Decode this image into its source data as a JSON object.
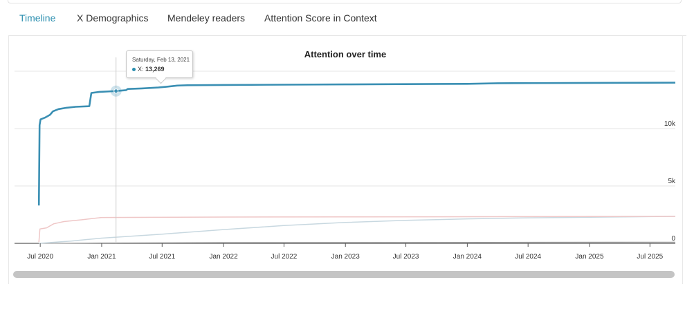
{
  "tabs": [
    {
      "label": "Timeline",
      "active": true
    },
    {
      "label": "X Demographics",
      "active": false
    },
    {
      "label": "Mendeley readers",
      "active": false
    },
    {
      "label": "Attention Score in Context",
      "active": false
    }
  ],
  "colors": {
    "accent": "#2a8eaf",
    "x_series": "#3a8fb3",
    "series_pink": "#efc7c7",
    "series_lightblue": "#c8d8e0",
    "series_gray": "#999999"
  },
  "tooltip": {
    "date": "Saturday, Feb 13, 2021",
    "series": "X",
    "value": "13,269"
  },
  "chart_data": {
    "type": "line",
    "title": "Attention over time",
    "xlabel": "",
    "ylabel": "",
    "x_range": [
      "2020-04-15",
      "2025-09-15"
    ],
    "ylim": [
      0,
      15000
    ],
    "y_ticks": [
      {
        "label": "0",
        "value": 0
      },
      {
        "label": "5k",
        "value": 5000
      },
      {
        "label": "10k",
        "value": 10000
      }
    ],
    "x_ticks": [
      {
        "label": "Jul 2020",
        "date": "2020-07-01"
      },
      {
        "label": "Jan 2021",
        "date": "2021-01-01"
      },
      {
        "label": "Jul 2021",
        "date": "2021-07-01"
      },
      {
        "label": "Jan 2022",
        "date": "2022-01-01"
      },
      {
        "label": "Jul 2022",
        "date": "2022-07-01"
      },
      {
        "label": "Jan 2023",
        "date": "2023-01-01"
      },
      {
        "label": "Jul 2023",
        "date": "2023-07-01"
      },
      {
        "label": "Jan 2024",
        "date": "2024-01-01"
      },
      {
        "label": "Jul 2024",
        "date": "2024-07-01"
      },
      {
        "label": "Jan 2025",
        "date": "2025-01-01"
      },
      {
        "label": "Jul 2025",
        "date": "2025-07-01"
      }
    ],
    "series": [
      {
        "name": "X",
        "color": "#3a8fb3",
        "width": 2.6,
        "points": [
          [
            "2020-06-27",
            3300
          ],
          [
            "2020-06-29",
            10300
          ],
          [
            "2020-07-02",
            10800
          ],
          [
            "2020-07-15",
            10950
          ],
          [
            "2020-07-30",
            11200
          ],
          [
            "2020-08-08",
            11500
          ],
          [
            "2020-08-25",
            11700
          ],
          [
            "2020-09-15",
            11800
          ],
          [
            "2020-10-15",
            11900
          ],
          [
            "2020-11-25",
            11950
          ],
          [
            "2020-12-01",
            13100
          ],
          [
            "2020-12-25",
            13200
          ],
          [
            "2021-02-13",
            13269
          ],
          [
            "2021-03-15",
            13350
          ],
          [
            "2021-03-20",
            13450
          ],
          [
            "2021-05-01",
            13500
          ],
          [
            "2021-06-20",
            13580
          ],
          [
            "2021-07-15",
            13650
          ],
          [
            "2021-08-15",
            13750
          ],
          [
            "2021-09-15",
            13780
          ],
          [
            "2022-01-01",
            13800
          ],
          [
            "2023-01-01",
            13850
          ],
          [
            "2024-01-01",
            13900
          ],
          [
            "2024-04-01",
            13950
          ],
          [
            "2025-01-01",
            13980
          ],
          [
            "2025-09-15",
            14000
          ]
        ]
      },
      {
        "name": "",
        "color": "#efc7c7",
        "width": 1.5,
        "points": [
          [
            "2020-06-27",
            100
          ],
          [
            "2020-06-30",
            1250
          ],
          [
            "2020-07-20",
            1350
          ],
          [
            "2020-08-10",
            1700
          ],
          [
            "2020-09-10",
            1900
          ],
          [
            "2020-11-01",
            2050
          ],
          [
            "2021-01-01",
            2250
          ],
          [
            "2022-01-01",
            2290
          ],
          [
            "2023-01-01",
            2300
          ],
          [
            "2024-01-01",
            2320
          ],
          [
            "2025-09-15",
            2350
          ]
        ]
      },
      {
        "name": "",
        "color": "#c8d8e0",
        "width": 1.5,
        "points": [
          [
            "2020-06-27",
            0
          ],
          [
            "2020-10-01",
            200
          ],
          [
            "2021-01-01",
            450
          ],
          [
            "2021-07-01",
            800
          ],
          [
            "2022-01-01",
            1200
          ],
          [
            "2022-07-01",
            1550
          ],
          [
            "2023-01-01",
            1820
          ],
          [
            "2023-07-01",
            2000
          ],
          [
            "2024-01-01",
            2130
          ],
          [
            "2024-07-01",
            2220
          ],
          [
            "2025-01-01",
            2280
          ],
          [
            "2025-09-15",
            2350
          ]
        ]
      },
      {
        "name": "",
        "color": "#999999",
        "width": 1.2,
        "points": [
          [
            "2020-06-27",
            0
          ],
          [
            "2021-01-01",
            30
          ],
          [
            "2022-01-01",
            60
          ],
          [
            "2025-09-15",
            100
          ]
        ]
      }
    ],
    "crosshair_date": "2021-02-13",
    "grid": true
  }
}
